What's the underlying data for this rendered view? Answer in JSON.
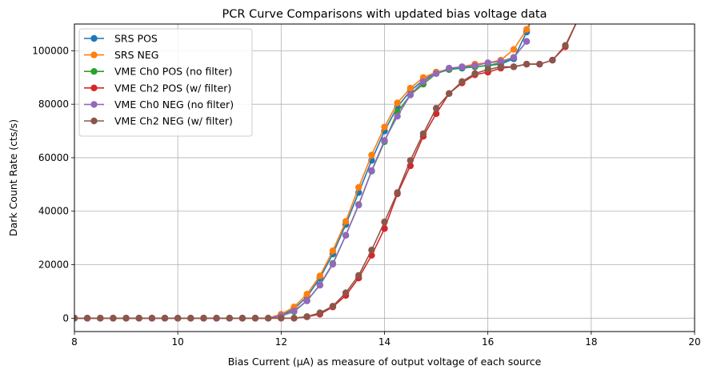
{
  "chart_data": {
    "type": "line",
    "title": "PCR Curve Comparisons with updated bias voltage data",
    "xlabel": "Bias Current (µA) as measure of output voltage of each source",
    "ylabel": "Dark Count Rate (cts/s)",
    "xlim": [
      8,
      20
    ],
    "ylim": [
      -5000,
      110000
    ],
    "xticks": [
      "8",
      "10",
      "12",
      "14",
      "16",
      "18",
      "20"
    ],
    "yticks": [
      "0",
      "20000",
      "40000",
      "60000",
      "80000",
      "100000"
    ],
    "grid": true,
    "legend_position": "top-left",
    "series": [
      {
        "name": "SRS POS",
        "color": "#1f77b4",
        "x": [
          8.0,
          8.25,
          8.5,
          8.75,
          9.0,
          9.25,
          9.5,
          9.75,
          10.0,
          10.25,
          10.5,
          10.75,
          11.0,
          11.25,
          11.5,
          11.75,
          12.0,
          12.25,
          12.5,
          12.75,
          13.0,
          13.25,
          13.5,
          13.75,
          14.0,
          14.25,
          14.5,
          14.75,
          15.0,
          15.25,
          15.5,
          15.75,
          16.0,
          16.25,
          16.5,
          16.75,
          16.85
        ],
        "y": [
          0,
          0,
          0,
          0,
          0,
          0,
          0,
          0,
          0,
          0,
          0,
          0,
          0,
          0,
          0,
          0,
          1000,
          3500,
          8000,
          15000,
          24000,
          35000,
          47000,
          59000,
          70000,
          79000,
          85000,
          89000,
          92000,
          93000,
          93500,
          94000,
          94500,
          95000,
          97000,
          107000,
          112000
        ]
      },
      {
        "name": "SRS NEG",
        "color": "#ff7f0e",
        "x": [
          8.0,
          8.25,
          8.5,
          8.75,
          9.0,
          9.25,
          9.5,
          9.75,
          10.0,
          10.25,
          10.5,
          10.75,
          11.0,
          11.25,
          11.5,
          11.75,
          12.0,
          12.25,
          12.5,
          12.75,
          13.0,
          13.25,
          13.5,
          13.75,
          14.0,
          14.25,
          14.5,
          14.75,
          15.0,
          15.25,
          15.5,
          15.75,
          16.0,
          16.25,
          16.5,
          16.75,
          16.85
        ],
        "y": [
          0,
          0,
          0,
          0,
          0,
          0,
          0,
          0,
          0,
          0,
          0,
          0,
          0,
          0,
          0,
          0,
          1500,
          4200,
          9000,
          15800,
          25200,
          36200,
          48900,
          61000,
          71500,
          80500,
          86000,
          90000,
          92000,
          93000,
          94000,
          95000,
          95500,
          96500,
          100500,
          108000,
          112000
        ]
      },
      {
        "name": "VME Ch0 POS (no filter)",
        "color": "#2ca02c",
        "x": [
          8.0,
          8.25,
          8.5,
          8.75,
          9.0,
          9.25,
          9.5,
          9.75,
          10.0,
          10.25,
          10.5,
          10.75,
          11.0,
          11.25,
          11.5,
          11.75,
          12.0,
          12.25,
          12.5,
          12.75,
          13.0,
          13.25,
          13.5,
          13.75,
          14.0,
          14.25,
          14.5,
          14.75,
          15.0,
          15.25,
          15.5,
          15.75,
          16.0,
          16.25,
          16.5,
          16.75
        ],
        "y": [
          0,
          0,
          0,
          0,
          0,
          0,
          0,
          0,
          0,
          0,
          0,
          0,
          0,
          0,
          0,
          0,
          800,
          2500,
          6500,
          12500,
          20500,
          31000,
          42500,
          55000,
          66000,
          77000,
          83500,
          87500,
          91500,
          93000,
          93800,
          94000,
          94500,
          95500,
          97500,
          103500
        ]
      },
      {
        "name": "VME Ch2 POS (w/ filter)",
        "color": "#d62728",
        "x": [
          8.0,
          8.25,
          8.5,
          8.75,
          9.0,
          9.25,
          9.5,
          9.75,
          10.0,
          10.25,
          10.5,
          10.75,
          11.0,
          11.25,
          11.5,
          11.75,
          12.0,
          12.25,
          12.5,
          12.75,
          13.0,
          13.25,
          13.5,
          13.75,
          14.0,
          14.25,
          14.5,
          14.75,
          15.0,
          15.25,
          15.5,
          15.75,
          16.0,
          16.25,
          16.5,
          16.75,
          17.0,
          17.25,
          17.5,
          17.75
        ],
        "y": [
          0,
          0,
          0,
          0,
          0,
          0,
          0,
          0,
          0,
          0,
          0,
          0,
          0,
          0,
          0,
          0,
          0,
          0,
          500,
          1500,
          4200,
          8500,
          15000,
          23500,
          33500,
          46500,
          57000,
          68000,
          76500,
          84000,
          88000,
          91000,
          92000,
          93500,
          94000,
          95000,
          95000,
          96500,
          101500,
          112000
        ]
      },
      {
        "name": "VME Ch0 NEG (no filter)",
        "color": "#9467bd",
        "x": [
          8.0,
          8.25,
          8.5,
          8.75,
          9.0,
          9.25,
          9.5,
          9.75,
          10.0,
          10.25,
          10.5,
          10.75,
          11.0,
          11.25,
          11.5,
          11.75,
          12.0,
          12.25,
          12.5,
          12.75,
          13.0,
          13.25,
          13.5,
          13.75,
          14.0,
          14.25,
          14.5,
          14.75,
          15.0,
          15.25,
          15.5,
          15.75,
          16.0,
          16.25,
          16.5,
          16.75
        ],
        "y": [
          0,
          0,
          0,
          0,
          0,
          0,
          0,
          0,
          0,
          0,
          0,
          0,
          0,
          0,
          0,
          0,
          900,
          2700,
          6500,
          12300,
          20200,
          31000,
          42300,
          55200,
          66500,
          75500,
          83500,
          88500,
          91500,
          93500,
          94000,
          94500,
          95500,
          96000,
          97500,
          103500
        ]
      },
      {
        "name": "VME Ch2 NEG (w/ filter)",
        "color": "#8c564b",
        "x": [
          8.0,
          8.25,
          8.5,
          8.75,
          9.0,
          9.25,
          9.5,
          9.75,
          10.0,
          10.25,
          10.5,
          10.75,
          11.0,
          11.25,
          11.5,
          11.75,
          12.0,
          12.25,
          12.5,
          12.75,
          13.0,
          13.25,
          13.5,
          13.75,
          14.0,
          14.25,
          14.5,
          14.75,
          15.0,
          15.25,
          15.5,
          15.75,
          16.0,
          16.25,
          16.5,
          16.75,
          17.0,
          17.25,
          17.5,
          17.75
        ],
        "y": [
          0,
          0,
          0,
          0,
          0,
          0,
          0,
          0,
          0,
          0,
          0,
          0,
          0,
          0,
          0,
          0,
          0,
          0,
          600,
          2000,
          4500,
          9500,
          16000,
          25500,
          36000,
          47000,
          59000,
          69000,
          78500,
          84000,
          88500,
          91500,
          93000,
          94000,
          94000,
          95000,
          95000,
          96500,
          102000,
          112000
        ]
      }
    ]
  }
}
